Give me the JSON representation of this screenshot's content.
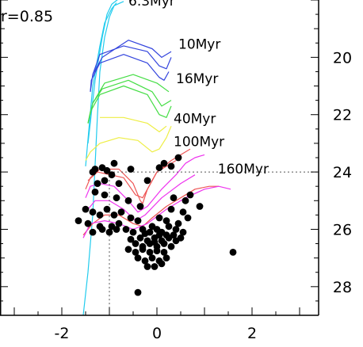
{
  "chart_data": {
    "type": "scatter",
    "annotation": "r=0.85",
    "xlim": [
      -3.3,
      3.4
    ],
    "ylim": [
      29.0,
      18.0
    ],
    "y_inverted": true,
    "x_ticks": [
      -2,
      0,
      2
    ],
    "y_ticks": [
      20,
      22,
      24,
      26,
      28
    ],
    "isochrones": [
      {
        "name": "6.3Myr",
        "color": "#22ccee",
        "label": "6.3Myr",
        "curves": [
          [
            [
              -1.55,
              29.0
            ],
            [
              -1.45,
              27.5
            ],
            [
              -1.35,
              25.5
            ],
            [
              -1.25,
              22.0
            ],
            [
              -1.2,
              20.5
            ],
            [
              -1.1,
              19.3
            ],
            [
              -1.0,
              18.6
            ],
            [
              -0.9,
              18.2
            ],
            [
              -0.7,
              18.05
            ]
          ],
          [
            [
              -1.45,
              23.0
            ],
            [
              -1.3,
              20.8
            ],
            [
              -1.15,
              19.3
            ],
            [
              -1.05,
              18.5
            ],
            [
              -0.95,
              18.15
            ],
            [
              -0.8,
              17.95
            ]
          ],
          [
            [
              -1.5,
              23.8
            ],
            [
              -1.35,
              21.0
            ],
            [
              -1.2,
              19.6
            ],
            [
              -1.1,
              18.8
            ],
            [
              -0.95,
              18.3
            ],
            [
              -0.85,
              18.1
            ]
          ]
        ]
      },
      {
        "name": "10Myr",
        "color": "#3344dd",
        "label": "10Myr",
        "curves": [
          [
            [
              -1.4,
              21.2
            ],
            [
              -1.38,
              20.8
            ],
            [
              -1.2,
              20.2
            ],
            [
              -0.7,
              19.9
            ],
            [
              -0.2,
              20.2
            ],
            [
              0.05,
              20.7
            ],
            [
              0.15,
              20.8
            ],
            [
              0.25,
              20.5
            ]
          ],
          [
            [
              -1.4,
              21.2
            ],
            [
              -1.35,
              20.6
            ],
            [
              -1.2,
              19.9
            ],
            [
              -0.7,
              19.6
            ],
            [
              -0.2,
              19.8
            ],
            [
              0.05,
              20.3
            ],
            [
              0.2,
              20.4
            ],
            [
              0.3,
              20.0
            ]
          ],
          [
            [
              -1.35,
              20.6
            ],
            [
              -1.15,
              20.0
            ],
            [
              -0.6,
              19.4
            ],
            [
              -0.1,
              19.7
            ],
            [
              0.1,
              20.0
            ],
            [
              0.3,
              19.8
            ]
          ]
        ]
      },
      {
        "name": "16Myr",
        "color": "#44dd44",
        "label": "16Myr",
        "curves": [
          [
            [
              -1.45,
              22.3
            ],
            [
              -1.4,
              21.9
            ],
            [
              -1.2,
              21.3
            ],
            [
              -0.7,
              21.0
            ],
            [
              -0.2,
              21.3
            ],
            [
              0.05,
              22.0
            ],
            [
              0.2,
              22.1
            ],
            [
              0.3,
              21.7
            ]
          ],
          [
            [
              -1.45,
              22.3
            ],
            [
              -1.35,
              21.6
            ],
            [
              -1.15,
              21.1
            ],
            [
              -0.6,
              20.8
            ],
            [
              -0.1,
              21.2
            ],
            [
              0.1,
              21.7
            ],
            [
              0.3,
              21.5
            ]
          ],
          [
            [
              -1.35,
              21.6
            ],
            [
              -1.1,
              20.9
            ],
            [
              -0.5,
              20.6
            ],
            [
              0.0,
              20.9
            ],
            [
              0.25,
              21.2
            ]
          ]
        ]
      },
      {
        "name": "40Myr",
        "color": "#eeee44",
        "label": "40Myr",
        "curves": [
          [
            [
              -1.5,
              23.6
            ],
            [
              -1.4,
              23.3
            ],
            [
              -1.2,
              23.0
            ],
            [
              -0.8,
              22.8
            ],
            [
              -0.4,
              22.9
            ],
            [
              -0.1,
              23.3
            ],
            [
              0.05,
              23.2
            ],
            [
              0.2,
              22.8
            ],
            [
              0.3,
              22.4
            ]
          ],
          [
            [
              -1.2,
              22.1
            ],
            [
              -0.7,
              22.1
            ],
            [
              -0.2,
              22.3
            ],
            [
              0.05,
              22.6
            ],
            [
              0.2,
              22.4
            ]
          ]
        ]
      },
      {
        "name": "100Myr",
        "color": "#ee5555",
        "label": "100Myr",
        "curves": [
          [
            [
              -1.5,
              24.6
            ],
            [
              -1.4,
              24.2
            ],
            [
              -1.2,
              23.9
            ],
            [
              -0.8,
              23.9
            ],
            [
              -0.5,
              24.4
            ],
            [
              -0.35,
              25.0
            ],
            [
              -0.3,
              25.1
            ],
            [
              -0.2,
              24.6
            ],
            [
              0.0,
              24.0
            ],
            [
              0.2,
              23.8
            ],
            [
              0.4,
              23.6
            ]
          ],
          [
            [
              -1.45,
              24.3
            ],
            [
              -1.25,
              24.0
            ],
            [
              -0.7,
              24.2
            ],
            [
              -0.45,
              24.8
            ],
            [
              -0.3,
              24.9
            ],
            [
              0.0,
              24.0
            ],
            [
              0.3,
              23.6
            ],
            [
              0.5,
              23.4
            ],
            [
              0.7,
              23.2
            ]
          ],
          [
            [
              -1.55,
              26.2
            ],
            [
              -1.35,
              25.8
            ],
            [
              -1.1,
              25.5
            ],
            [
              -0.8,
              25.5
            ],
            [
              -0.5,
              25.8
            ],
            [
              -0.3,
              25.9
            ],
            [
              -0.1,
              25.6
            ],
            [
              0.2,
              25.2
            ],
            [
              0.5,
              24.9
            ],
            [
              0.8,
              24.6
            ],
            [
              1.1,
              24.5
            ],
            [
              1.3,
              24.5
            ]
          ]
        ]
      },
      {
        "name": "160Myr",
        "color": "#ee33ee",
        "label": "160Myr",
        "curves": [
          [
            [
              -1.5,
              24.9
            ],
            [
              -1.4,
              24.5
            ],
            [
              -1.2,
              24.4
            ],
            [
              -0.9,
              24.5
            ],
            [
              -0.6,
              25.0
            ],
            [
              -0.4,
              25.4
            ],
            [
              -0.2,
              25.2
            ],
            [
              0.1,
              24.6
            ],
            [
              0.4,
              24.1
            ],
            [
              0.6,
              23.7
            ],
            [
              0.8,
              23.5
            ],
            [
              1.0,
              23.4
            ]
          ],
          [
            [
              -1.55,
              26.3
            ],
            [
              -1.4,
              25.8
            ],
            [
              -1.1,
              25.7
            ],
            [
              -0.8,
              25.8
            ],
            [
              -0.5,
              26.0
            ],
            [
              -0.2,
              25.8
            ],
            [
              0.2,
              25.3
            ],
            [
              0.6,
              24.9
            ],
            [
              1.0,
              24.6
            ],
            [
              1.3,
              24.5
            ],
            [
              1.55,
              24.6
            ]
          ],
          [
            [
              -1.5,
              25.4
            ],
            [
              -1.3,
              25.0
            ],
            [
              -1.0,
              25.0
            ],
            [
              -0.7,
              25.3
            ],
            [
              -0.45,
              25.7
            ],
            [
              -0.25,
              25.5
            ],
            [
              0.1,
              24.9
            ],
            [
              0.5,
              24.4
            ],
            [
              0.8,
              24.1
            ]
          ]
        ]
      }
    ],
    "reference_lines": {
      "horizontal_y": 24.0,
      "vertical_x": -1.0
    },
    "points": [
      [
        -1.3,
        23.9
      ],
      [
        -1.15,
        23.85
      ],
      [
        -1.05,
        23.95
      ],
      [
        -0.9,
        23.7
      ],
      [
        -0.55,
        23.9
      ],
      [
        0.05,
        23.85
      ],
      [
        0.3,
        23.8
      ],
      [
        0.45,
        23.5
      ],
      [
        -1.35,
        24.0
      ],
      [
        -1.25,
        24.4
      ],
      [
        -1.1,
        24.3
      ],
      [
        -0.95,
        24.1
      ],
      [
        -0.8,
        24.4
      ],
      [
        -0.2,
        24.3
      ],
      [
        0.6,
        25.0
      ],
      [
        0.7,
        24.8
      ],
      [
        -1.3,
        24.7
      ],
      [
        -1.1,
        24.8
      ],
      [
        -0.85,
        24.9
      ],
      [
        -0.6,
        25.0
      ],
      [
        -0.35,
        25.2
      ],
      [
        0.3,
        25.3
      ],
      [
        0.55,
        25.4
      ],
      [
        0.65,
        25.6
      ],
      [
        -1.5,
        25.3
      ],
      [
        -1.35,
        25.4
      ],
      [
        -1.2,
        25.5
      ],
      [
        -1.05,
        25.3
      ],
      [
        -0.9,
        25.5
      ],
      [
        -0.75,
        25.4
      ],
      [
        -0.55,
        25.6
      ],
      [
        -0.4,
        25.7
      ],
      [
        -1.65,
        25.7
      ],
      [
        -1.45,
        25.8
      ],
      [
        -1.2,
        25.9
      ],
      [
        -0.95,
        25.9
      ],
      [
        -0.8,
        25.8
      ],
      [
        -0.65,
        26.0
      ],
      [
        0.05,
        25.6
      ],
      [
        0.2,
        25.7
      ],
      [
        -1.35,
        26.1
      ],
      [
        -1.15,
        26.0
      ],
      [
        -1.0,
        26.1
      ],
      [
        -0.85,
        26.0
      ],
      [
        -0.5,
        26.1
      ],
      [
        -0.3,
        26.0
      ],
      [
        -0.15,
        26.1
      ],
      [
        0.0,
        26.0
      ],
      [
        0.1,
        26.1
      ],
      [
        0.25,
        25.9
      ],
      [
        0.4,
        26.0
      ],
      [
        0.55,
        26.1
      ],
      [
        -0.35,
        26.3
      ],
      [
        -0.2,
        26.4
      ],
      [
        -0.05,
        26.3
      ],
      [
        0.1,
        26.4
      ],
      [
        0.25,
        26.3
      ],
      [
        0.4,
        26.4
      ],
      [
        -0.45,
        26.5
      ],
      [
        -0.3,
        26.6
      ],
      [
        -0.15,
        26.5
      ],
      [
        0.0,
        26.6
      ],
      [
        0.15,
        26.5
      ],
      [
        0.3,
        26.6
      ],
      [
        -0.6,
        26.7
      ],
      [
        -0.45,
        26.8
      ],
      [
        -0.3,
        26.7
      ],
      [
        -0.15,
        26.8
      ],
      [
        0.0,
        26.75
      ],
      [
        0.15,
        26.8
      ],
      [
        -0.4,
        27.0
      ],
      [
        -0.25,
        27.1
      ],
      [
        -0.1,
        27.0
      ],
      [
        0.05,
        27.1
      ],
      [
        0.2,
        27.0
      ],
      [
        -0.2,
        27.3
      ],
      [
        -0.05,
        27.3
      ],
      [
        0.1,
        27.2
      ],
      [
        -0.1,
        25.9
      ],
      [
        0.05,
        26.2
      ],
      [
        -0.25,
        26.15
      ],
      [
        0.2,
        26.2
      ],
      [
        -0.05,
        26.45
      ],
      [
        0.35,
        26.2
      ],
      [
        0.45,
        25.8
      ],
      [
        0.5,
        26.3
      ],
      [
        -0.55,
        26.35
      ],
      [
        1.6,
        26.8
      ],
      [
        -0.4,
        28.2
      ],
      [
        0.35,
        24.9
      ],
      [
        0.9,
        25.2
      ],
      [
        0.15,
        23.7
      ]
    ]
  }
}
